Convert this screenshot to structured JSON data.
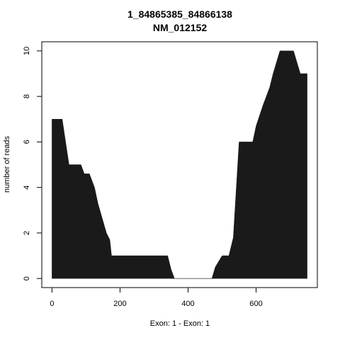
{
  "chart_data": {
    "type": "area",
    "title": "1_84865385_84866138",
    "subtitle": "NM_012152",
    "xlabel": "Exon: 1 - Exon: 1",
    "ylabel": "number of reads",
    "xlim": [
      -30,
      780
    ],
    "ylim": [
      -0.4,
      10.4
    ],
    "xticks": [
      0,
      200,
      400,
      600
    ],
    "yticks": [
      0,
      2,
      4,
      6,
      8,
      10
    ],
    "fill_color": "#1a1a1a",
    "grid": false,
    "x": [
      0,
      30,
      50,
      85,
      95,
      110,
      125,
      135,
      160,
      170,
      175,
      200,
      250,
      300,
      340,
      350,
      360,
      400,
      450,
      470,
      480,
      500,
      520,
      533,
      550,
      560,
      590,
      600,
      620,
      630,
      640,
      650,
      670,
      680,
      700,
      710,
      720,
      730,
      750
    ],
    "values": [
      7,
      7,
      5,
      5,
      4.6,
      4.6,
      4,
      3.3,
      2,
      1.7,
      1,
      1,
      1,
      1,
      1,
      0.4,
      0,
      0,
      0,
      0,
      0.5,
      1,
      1,
      1.8,
      6,
      6,
      6,
      6.7,
      7.6,
      8,
      8.4,
      9,
      10,
      10,
      10,
      10,
      9.5,
      9,
      9
    ]
  }
}
